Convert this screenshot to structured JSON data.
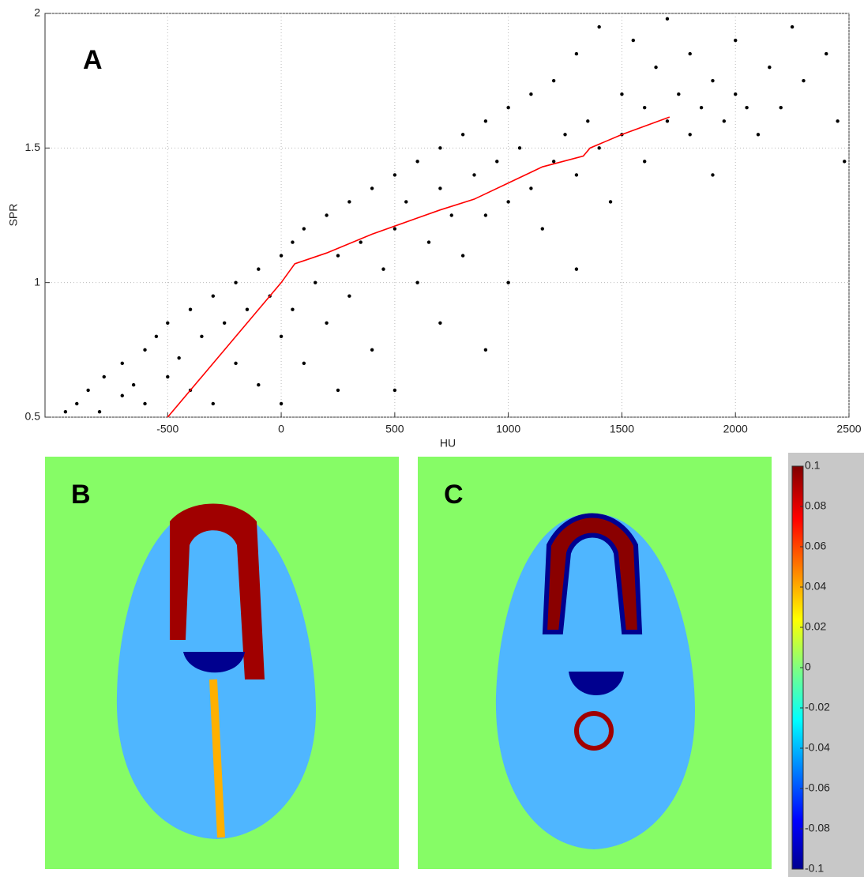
{
  "chart_data": {
    "type": "scatter",
    "label": "A",
    "xlabel": "HU",
    "ylabel": "SPR",
    "xlim": [
      -1040,
      2500
    ],
    "ylim": [
      0.5,
      2
    ],
    "xticks": [
      -500,
      0,
      500,
      1000,
      1500,
      2000,
      2500
    ],
    "yticks": [
      0.5,
      1,
      1.5,
      2
    ],
    "grid": true,
    "series": [
      {
        "color": "#000000",
        "x": [
          -950,
          -900,
          -850,
          -800,
          -780,
          -700,
          -700,
          -650,
          -600,
          -600,
          -550,
          -500,
          -500,
          -450,
          -400,
          -400,
          -350,
          -300,
          -300,
          -250,
          -200,
          -200,
          -150,
          -100,
          -100,
          -50,
          0,
          0,
          0,
          50,
          50,
          100,
          100,
          150,
          200,
          200,
          250,
          250,
          300,
          300,
          350,
          400,
          400,
          450,
          500,
          500,
          500,
          550,
          600,
          600,
          650,
          700,
          700,
          700,
          750,
          800,
          800,
          850,
          900,
          900,
          900,
          950,
          1000,
          1000,
          1000,
          1050,
          1100,
          1100,
          1150,
          1200,
          1200,
          1250,
          1300,
          1300,
          1300,
          1350,
          1400,
          1400,
          1450,
          1500,
          1500,
          1550,
          1600,
          1600,
          1650,
          1700,
          1700,
          1750,
          1800,
          1800,
          1850,
          1900,
          1900,
          1950,
          2000,
          2000,
          2050,
          2100,
          2150,
          2200,
          2250,
          2300,
          2400,
          2450,
          2480
        ],
        "values": [
          0.52,
          0.55,
          0.6,
          0.52,
          0.65,
          0.58,
          0.7,
          0.62,
          0.75,
          0.55,
          0.8,
          0.65,
          0.85,
          0.72,
          0.9,
          0.6,
          0.8,
          0.95,
          0.55,
          0.85,
          1.0,
          0.7,
          0.9,
          1.05,
          0.62,
          0.95,
          1.1,
          0.8,
          0.55,
          1.15,
          0.9,
          1.2,
          0.7,
          1.0,
          1.25,
          0.85,
          1.1,
          0.6,
          1.3,
          0.95,
          1.15,
          1.35,
          0.75,
          1.05,
          1.4,
          1.2,
          0.6,
          1.3,
          1.45,
          1.0,
          1.15,
          1.5,
          1.35,
          0.85,
          1.25,
          1.55,
          1.1,
          1.4,
          1.6,
          1.25,
          0.75,
          1.45,
          1.65,
          1.3,
          1.0,
          1.5,
          1.7,
          1.35,
          1.2,
          1.75,
          1.45,
          1.55,
          1.85,
          1.4,
          1.05,
          1.6,
          1.95,
          1.5,
          1.3,
          1.7,
          1.55,
          1.9,
          1.65,
          1.45,
          1.8,
          1.6,
          1.98,
          1.7,
          1.55,
          1.85,
          1.65,
          1.75,
          1.4,
          1.6,
          1.7,
          1.9,
          1.65,
          1.55,
          1.8,
          1.65,
          1.95,
          1.75,
          1.85,
          1.6,
          1.45
        ]
      },
      {
        "type": "line",
        "color": "#ff0000",
        "x": [
          -500,
          -250,
          0,
          60,
          200,
          400,
          600,
          700,
          850,
          1000,
          1100,
          1150,
          1330,
          1360,
          1500,
          1710
        ],
        "values": [
          0.5,
          0.75,
          1.0,
          1.07,
          1.11,
          1.18,
          1.24,
          1.27,
          1.31,
          1.37,
          1.41,
          1.43,
          1.47,
          1.5,
          1.55,
          1.615
        ]
      }
    ]
  },
  "images": [
    {
      "label": "B"
    },
    {
      "label": "C"
    }
  ],
  "colorbar": {
    "clim": [
      -0.1,
      0.1
    ],
    "ticks": [
      0.1,
      0.08,
      0.06,
      0.04,
      0.02,
      0,
      -0.02,
      -0.04,
      -0.06,
      -0.08,
      -0.1
    ]
  }
}
